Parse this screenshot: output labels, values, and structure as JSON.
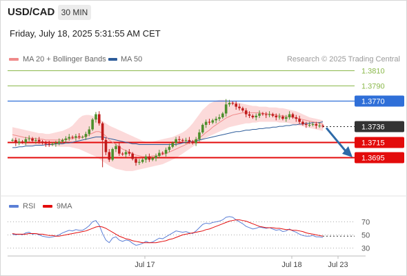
{
  "header": {
    "symbol": "USD/CAD",
    "timeframe": "30 MIN",
    "datetime": "Friday, July 18, 2025 5:31:55 AM CET"
  },
  "legend_main": [
    {
      "label": "MA 20 + Bollinger Bands",
      "color": "#f08a8a"
    },
    {
      "label": "MA 50",
      "color": "#2d5c9a"
    }
  ],
  "credit": "Research © 2025 Trading Central",
  "legend_rsi": [
    {
      "label": "RSI",
      "color": "#5b7fd6"
    },
    {
      "label": "9MA",
      "color": "#e30b0b"
    }
  ],
  "colors": {
    "resistance_green": "#8ab84a",
    "pivot_blue": "#2f6fd8",
    "support_red": "#e30b0b",
    "last_price": "#222222",
    "arrow": "#2d6aa8",
    "bull_candle": "#4d8f2c",
    "bear_candle": "#c01b1b",
    "bands_fill": "#fcdada"
  },
  "chart_data": [
    {
      "type": "candlestick",
      "title": "USD/CAD",
      "ylim": [
        1.3655,
        1.383
      ],
      "x_tick_labels": [
        "Jul 17",
        "Jul 18",
        "Jul 23"
      ],
      "price_levels": [
        {
          "value": 1.381,
          "label": "1.3810",
          "kind": "resistance"
        },
        {
          "value": 1.379,
          "label": "1.3790",
          "kind": "resistance"
        },
        {
          "value": 1.377,
          "label": "1.3770",
          "kind": "pivot"
        },
        {
          "value": 1.3736,
          "label": "1.3736",
          "kind": "last"
        },
        {
          "value": 1.3715,
          "label": "1.3715",
          "kind": "support"
        },
        {
          "value": 1.3695,
          "label": "1.3695",
          "kind": "support"
        }
      ],
      "series": [
        {
          "name": "USD/CAD",
          "values": [
            1.3718,
            1.3714,
            1.3716,
            1.3715,
            1.3719,
            1.372,
            1.3717,
            1.3718,
            1.3716,
            1.3714,
            1.3713,
            1.3712,
            1.3713,
            1.3714,
            1.3716,
            1.3718,
            1.372,
            1.3722,
            1.3721,
            1.3723,
            1.3722,
            1.3722,
            1.3726,
            1.3732,
            1.3745,
            1.3752,
            1.374,
            1.3718,
            1.3702,
            1.3692,
            1.3706,
            1.371,
            1.37,
            1.3699,
            1.3702,
            1.37,
            1.3693,
            1.3688,
            1.3689,
            1.3692,
            1.3696,
            1.3692,
            1.3694,
            1.3697,
            1.3701,
            1.37,
            1.3705,
            1.3709,
            1.3714,
            1.3719,
            1.3718,
            1.3717,
            1.3718,
            1.3716,
            1.3714,
            1.3719,
            1.3728,
            1.3738,
            1.3742,
            1.3741,
            1.3744,
            1.3746,
            1.3748,
            1.3753,
            1.3765,
            1.3767,
            1.3766,
            1.3762,
            1.376,
            1.3757,
            1.3752,
            1.375,
            1.3748,
            1.375,
            1.3753,
            1.3752,
            1.3751,
            1.3752,
            1.375,
            1.3748,
            1.3749,
            1.3746,
            1.3748,
            1.3752,
            1.3748,
            1.3746,
            1.3742,
            1.3739,
            1.3738,
            1.3738,
            1.3739,
            1.3737,
            1.3737,
            1.3736
          ]
        },
        {
          "name": "MA 20",
          "values": [
            1.3725,
            1.3724,
            1.3723,
            1.3722,
            1.3721,
            1.3721,
            1.372,
            1.372,
            1.3719,
            1.3719,
            1.3718,
            1.3718,
            1.3718,
            1.3718,
            1.3718,
            1.3718,
            1.3719,
            1.3719,
            1.372,
            1.3721,
            1.3721,
            1.3722,
            1.3723,
            1.3725,
            1.3727,
            1.3729,
            1.3729,
            1.3727,
            1.3723,
            1.3718,
            1.3715,
            1.3712,
            1.3709,
            1.3706,
            1.3704,
            1.3702,
            1.37,
            1.3698,
            1.3697,
            1.3696,
            1.3696,
            1.3696,
            1.3697,
            1.3697,
            1.3698,
            1.3699,
            1.37,
            1.3702,
            1.3704,
            1.3706,
            1.3708,
            1.371,
            1.3712,
            1.3714,
            1.3716,
            1.3718,
            1.3721,
            1.3724,
            1.3728,
            1.3731,
            1.3735,
            1.3738,
            1.3741,
            1.3744,
            1.3747,
            1.3749,
            1.3751,
            1.3752,
            1.3753,
            1.3754,
            1.3754,
            1.3754,
            1.3754,
            1.3754,
            1.3754,
            1.3753,
            1.3753,
            1.3752,
            1.3752,
            1.3751,
            1.375,
            1.375,
            1.3749,
            1.3749,
            1.3748,
            1.3747,
            1.3746,
            1.3745,
            1.3744,
            1.3743,
            1.3742,
            1.3741,
            1.374,
            1.3739
          ]
        },
        {
          "name": "Bollinger Upper",
          "values": [
            1.3735,
            1.3734,
            1.3733,
            1.3732,
            1.3731,
            1.373,
            1.3729,
            1.3728,
            1.3727,
            1.3727,
            1.3726,
            1.3726,
            1.3727,
            1.3728,
            1.3729,
            1.373,
            1.3732,
            1.3734,
            1.3737,
            1.3742,
            1.3747,
            1.375,
            1.3751,
            1.3751,
            1.375,
            1.3748,
            1.3746,
            1.3743,
            1.374,
            1.3737,
            1.3735,
            1.3733,
            1.3731,
            1.3729,
            1.3727,
            1.3725,
            1.3723,
            1.3721,
            1.3719,
            1.3717,
            1.3716,
            1.3716,
            1.3716,
            1.3717,
            1.3718,
            1.3719,
            1.372,
            1.3721,
            1.3722,
            1.3724,
            1.3726,
            1.3728,
            1.3731,
            1.3735,
            1.374,
            1.3746,
            1.3752,
            1.3758,
            1.3762,
            1.3766,
            1.3768,
            1.377,
            1.3771,
            1.3771,
            1.3771,
            1.377,
            1.3769,
            1.3768,
            1.3767,
            1.3766,
            1.3765,
            1.3764,
            1.3763,
            1.3763,
            1.3762,
            1.3762,
            1.3762,
            1.3761,
            1.3761,
            1.3761,
            1.376,
            1.376,
            1.3759,
            1.3758,
            1.3757,
            1.3756,
            1.3754,
            1.3752,
            1.375,
            1.3748,
            1.3747,
            1.3746,
            1.3745,
            1.3744
          ]
        },
        {
          "name": "Bollinger Lower",
          "values": [
            1.3715,
            1.3714,
            1.3713,
            1.3712,
            1.3711,
            1.3711,
            1.3711,
            1.3711,
            1.3711,
            1.3711,
            1.371,
            1.371,
            1.371,
            1.371,
            1.3709,
            1.3709,
            1.3709,
            1.3709,
            1.3708,
            1.3707,
            1.3706,
            1.3704,
            1.3702,
            1.37,
            1.3698,
            1.3696,
            1.3693,
            1.369,
            1.3687,
            1.3684,
            1.3682,
            1.368,
            1.3679,
            1.3678,
            1.3677,
            1.3677,
            1.3677,
            1.3678,
            1.3679,
            1.368,
            1.3681,
            1.3682,
            1.3683,
            1.3684,
            1.3685,
            1.3686,
            1.3688,
            1.369,
            1.3692,
            1.3694,
            1.3697,
            1.37,
            1.3703,
            1.3706,
            1.3709,
            1.3712,
            1.3715,
            1.3718,
            1.3721,
            1.3723,
            1.3725,
            1.3727,
            1.3729,
            1.3731,
            1.3733,
            1.3735,
            1.3736,
            1.3737,
            1.3738,
            1.3739,
            1.374,
            1.374,
            1.3741,
            1.3741,
            1.3742,
            1.3742,
            1.3742,
            1.3742,
            1.3742,
            1.3742,
            1.3741,
            1.3741,
            1.3741,
            1.374,
            1.3739,
            1.3738,
            1.3737,
            1.3736,
            1.3735,
            1.3734,
            1.3733,
            1.3732,
            1.3731,
            1.373
          ]
        },
        {
          "name": "MA 50",
          "values": [
            1.3708,
            1.3708,
            1.3709,
            1.3709,
            1.371,
            1.371,
            1.371,
            1.3711,
            1.3711,
            1.3711,
            1.3712,
            1.3712,
            1.3712,
            1.3713,
            1.3713,
            1.3713,
            1.3714,
            1.3714,
            1.3715,
            1.3716,
            1.3717,
            1.3718,
            1.3719,
            1.372,
            1.3721,
            1.3722,
            1.3722,
            1.3722,
            1.3721,
            1.372,
            1.3719,
            1.3718,
            1.3717,
            1.3716,
            1.3715,
            1.3714,
            1.3713,
            1.3713,
            1.3712,
            1.3712,
            1.3712,
            1.3712,
            1.3712,
            1.3712,
            1.3712,
            1.3712,
            1.3712,
            1.3712,
            1.3712,
            1.3712,
            1.3713,
            1.3714,
            1.3715,
            1.3716,
            1.3716,
            1.3717,
            1.3718,
            1.3719,
            1.372,
            1.3721,
            1.3722,
            1.3723,
            1.3724,
            1.3725,
            1.3726,
            1.3727,
            1.3728,
            1.3729,
            1.3729,
            1.373,
            1.3731,
            1.3731,
            1.3732,
            1.3732,
            1.3733,
            1.3733,
            1.3734,
            1.3734,
            1.3735,
            1.3735,
            1.3736,
            1.3736,
            1.3737,
            1.3737,
            1.3738,
            1.3738,
            1.3739,
            1.3739,
            1.374,
            1.374,
            1.3741,
            1.3741,
            1.3741,
            1.3742
          ]
        }
      ]
    },
    {
      "type": "line",
      "title": "RSI",
      "ylim": [
        25,
        80
      ],
      "y_ticks": [
        30,
        50,
        70
      ],
      "x_tick_labels": [
        "Jul 17",
        "Jul 18",
        "Jul 23"
      ],
      "series": [
        {
          "name": "RSI",
          "values": [
            51,
            50,
            51,
            50,
            53,
            54,
            51,
            52,
            50,
            48,
            47,
            46,
            47,
            48,
            50,
            53,
            55,
            57,
            56,
            58,
            57,
            57,
            60,
            64,
            70,
            72,
            65,
            52,
            42,
            38,
            45,
            47,
            42,
            40,
            42,
            41,
            37,
            34,
            35,
            37,
            40,
            38,
            39,
            42,
            45,
            44,
            47,
            50,
            53,
            56,
            55,
            54,
            55,
            53,
            52,
            56,
            61,
            66,
            68,
            67,
            69,
            70,
            71,
            73,
            77,
            78,
            77,
            73,
            70,
            67,
            63,
            61,
            59,
            60,
            62,
            61,
            60,
            61,
            59,
            57,
            58,
            55,
            56,
            59,
            56,
            54,
            51,
            49,
            48,
            48,
            49,
            47,
            47,
            46
          ]
        },
        {
          "name": "9MA",
          "values": [
            52,
            51,
            51,
            51,
            51,
            52,
            52,
            52,
            51,
            51,
            50,
            49,
            49,
            48,
            48,
            49,
            50,
            51,
            52,
            53,
            54,
            55,
            56,
            58,
            60,
            62,
            63,
            62,
            60,
            57,
            54,
            51,
            48,
            46,
            44,
            43,
            41,
            40,
            39,
            38,
            38,
            38,
            38,
            38,
            39,
            40,
            41,
            43,
            44,
            46,
            48,
            50,
            51,
            52,
            53,
            54,
            55,
            56,
            58,
            59,
            61,
            63,
            65,
            67,
            69,
            71,
            72,
            73,
            73,
            72,
            71,
            69,
            67,
            65,
            63,
            62,
            61,
            61,
            61,
            60,
            60,
            59,
            58,
            58,
            57,
            57,
            56,
            55,
            53,
            52,
            51,
            50,
            49,
            48
          ]
        }
      ]
    }
  ]
}
